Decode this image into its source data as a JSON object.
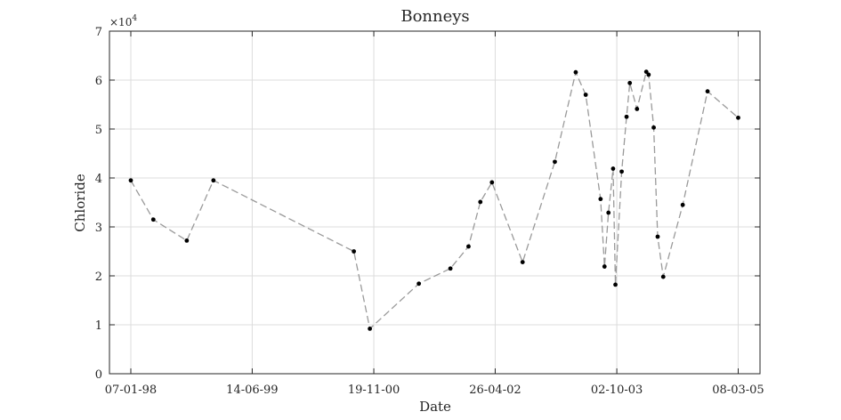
{
  "chart_data": {
    "type": "line",
    "title": "Bonneys",
    "xlabel": "Date",
    "ylabel": "Chloride",
    "y_exponent_label": "×10",
    "y_exponent_power": "4",
    "x_ticks": [
      {
        "date": "1998-01-07",
        "label": "07-01-98"
      },
      {
        "date": "1999-06-14",
        "label": "14-06-99"
      },
      {
        "date": "2000-11-19",
        "label": "19-11-00"
      },
      {
        "date": "2002-04-26",
        "label": "26-04-02"
      },
      {
        "date": "2003-10-02",
        "label": "02-10-03"
      },
      {
        "date": "2005-03-08",
        "label": "08-03-05"
      }
    ],
    "y_ticks": [
      {
        "value": 0,
        "label": "0"
      },
      {
        "value": 10000,
        "label": "1"
      },
      {
        "value": 20000,
        "label": "2"
      },
      {
        "value": 30000,
        "label": "3"
      },
      {
        "value": 40000,
        "label": "4"
      },
      {
        "value": 50000,
        "label": "5"
      },
      {
        "value": 60000,
        "label": "6"
      },
      {
        "value": 70000,
        "label": "7"
      }
    ],
    "xlim": [
      "1997-10-07",
      "2005-06-10"
    ],
    "ylim": [
      0,
      70000
    ],
    "grid": true,
    "line_color": "#9a9a9a",
    "marker_color": "#000000",
    "series": [
      {
        "points": [
          {
            "x": "1998-01-07",
            "y": 39500
          },
          {
            "x": "1998-04-14",
            "y": 31500
          },
          {
            "x": "1998-09-05",
            "y": 27200
          },
          {
            "x": "1998-12-29",
            "y": 39500
          },
          {
            "x": "2000-08-25",
            "y": 25000
          },
          {
            "x": "2000-11-02",
            "y": 9200
          },
          {
            "x": "2001-06-01",
            "y": 18400
          },
          {
            "x": "2001-10-15",
            "y": 21500
          },
          {
            "x": "2002-01-01",
            "y": 26000
          },
          {
            "x": "2002-02-21",
            "y": 35100
          },
          {
            "x": "2002-04-12",
            "y": 39100
          },
          {
            "x": "2002-08-22",
            "y": 22800
          },
          {
            "x": "2003-01-08",
            "y": 43300
          },
          {
            "x": "2003-04-08",
            "y": 61600
          },
          {
            "x": "2003-05-21",
            "y": 57000
          },
          {
            "x": "2003-07-24",
            "y": 35700
          },
          {
            "x": "2003-08-10",
            "y": 21900
          },
          {
            "x": "2003-08-27",
            "y": 32900
          },
          {
            "x": "2003-09-16",
            "y": 41900
          },
          {
            "x": "2003-09-26",
            "y": 18200
          },
          {
            "x": "2003-10-23",
            "y": 41300
          },
          {
            "x": "2003-11-13",
            "y": 52500
          },
          {
            "x": "2003-11-27",
            "y": 59400
          },
          {
            "x": "2003-12-28",
            "y": 54100
          },
          {
            "x": "2004-02-06",
            "y": 61700
          },
          {
            "x": "2004-02-16",
            "y": 61100
          },
          {
            "x": "2004-03-09",
            "y": 50300
          },
          {
            "x": "2004-03-26",
            "y": 28000
          },
          {
            "x": "2004-04-19",
            "y": 19800
          },
          {
            "x": "2004-07-12",
            "y": 34500
          },
          {
            "x": "2004-10-27",
            "y": 57700
          },
          {
            "x": "2005-03-08",
            "y": 52300
          }
        ]
      }
    ]
  }
}
